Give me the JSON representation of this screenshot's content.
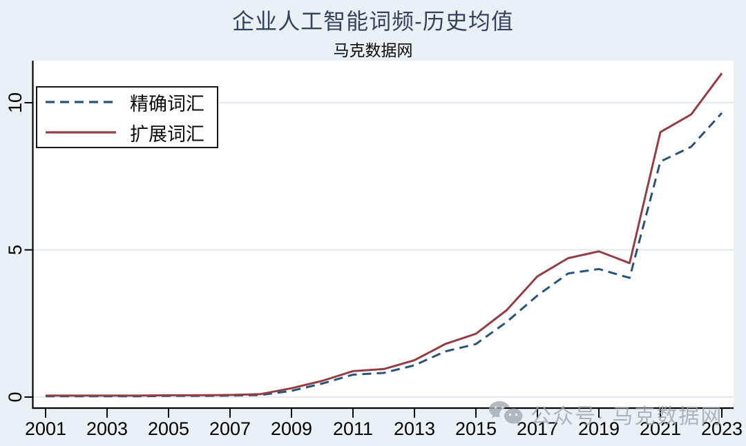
{
  "colors": {
    "background": "#e9f0f6",
    "plot_background": "#ffffff",
    "grid": "#e3ebf2",
    "axis": "#000000",
    "title": "#35425f",
    "watermark_gray": "#9fa5ab",
    "series_precise_navy": "#26527c",
    "series_expanded_maroon": "#943c41"
  },
  "header": {
    "title": "企业人工智能词频-历史均值",
    "subtitle": "马克数据网"
  },
  "watermark": {
    "icon": "wechat-icon",
    "text": "公众号· 马克数据网"
  },
  "chart_data": {
    "type": "line",
    "title": "企业人工智能词频-历史均值",
    "subtitle": "马克数据网",
    "xlabel": "",
    "ylabel": "",
    "x": [
      2001,
      2002,
      2003,
      2004,
      2005,
      2006,
      2007,
      2008,
      2009,
      2010,
      2011,
      2012,
      2013,
      2014,
      2015,
      2016,
      2017,
      2018,
      2019,
      2020,
      2021,
      2022,
      2023
    ],
    "series": [
      {
        "name": "精确词汇",
        "style": "dashed",
        "color": "#26527c",
        "values": [
          0.03,
          0.03,
          0.03,
          0.03,
          0.04,
          0.04,
          0.05,
          0.07,
          0.21,
          0.46,
          0.76,
          0.82,
          1.08,
          1.55,
          1.8,
          2.55,
          3.45,
          4.2,
          4.35,
          4.05,
          8.0,
          8.5,
          9.65
        ]
      },
      {
        "name": "扩展词汇",
        "style": "solid",
        "color": "#943c41",
        "values": [
          0.05,
          0.05,
          0.05,
          0.05,
          0.06,
          0.06,
          0.07,
          0.1,
          0.3,
          0.55,
          0.88,
          0.95,
          1.25,
          1.8,
          2.15,
          2.95,
          4.1,
          4.72,
          4.95,
          4.55,
          9.0,
          9.6,
          11.0
        ]
      }
    ],
    "xticks": [
      2001,
      2003,
      2005,
      2007,
      2009,
      2011,
      2013,
      2015,
      2017,
      2019,
      2021,
      2023
    ],
    "yticks": [
      0,
      5,
      10
    ],
    "ylim": [
      0,
      11.4
    ],
    "grid": "horizontal",
    "legend_position": "top-left"
  }
}
